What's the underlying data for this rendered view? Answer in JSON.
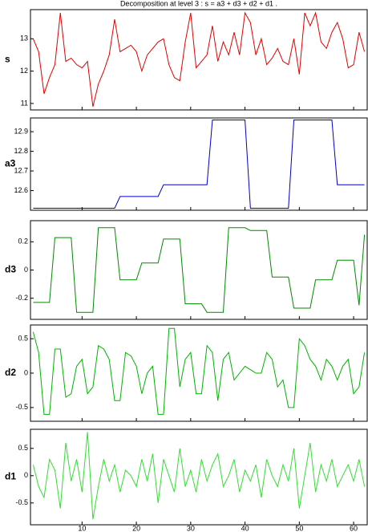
{
  "chart_data": {
    "type": "line",
    "title": "Decomposition at level 3 : s = a3 + d3 + d2 + d1 .",
    "x": [
      1,
      2,
      3,
      4,
      5,
      6,
      7,
      8,
      9,
      10,
      11,
      12,
      13,
      14,
      15,
      16,
      17,
      18,
      19,
      20,
      21,
      22,
      23,
      24,
      25,
      26,
      27,
      28,
      29,
      30,
      31,
      32,
      33,
      34,
      35,
      36,
      37,
      38,
      39,
      40,
      41,
      42,
      43,
      44,
      45,
      46,
      47,
      48,
      49,
      50,
      51,
      52,
      53,
      54,
      55,
      56,
      57,
      58,
      59,
      60,
      61,
      62
    ],
    "xlim": [
      0.5,
      62.5
    ],
    "xticks": [
      10,
      20,
      30,
      40,
      50,
      60
    ],
    "panels": [
      {
        "ylabel": "s",
        "color": "#e00000",
        "ylim": [
          10.8,
          13.9
        ],
        "yticks": [
          11,
          12,
          13
        ],
        "values": [
          13.0,
          12.6,
          11.3,
          11.8,
          12.2,
          13.8,
          12.3,
          12.4,
          12.2,
          12.1,
          12.3,
          10.9,
          11.6,
          12.0,
          12.5,
          13.6,
          12.6,
          12.7,
          12.8,
          12.6,
          12.0,
          12.5,
          12.7,
          12.9,
          13.0,
          12.2,
          11.8,
          11.7,
          12.9,
          13.8,
          12.1,
          12.3,
          12.5,
          13.4,
          12.3,
          12.9,
          12.5,
          13.2,
          12.5,
          13.8,
          13.5,
          12.5,
          13.0,
          12.2,
          12.4,
          12.7,
          12.3,
          12.2,
          13.0,
          11.9,
          13.8,
          13.4,
          13.8,
          12.9,
          12.7,
          13.2,
          13.5,
          13.0,
          12.1,
          12.2,
          13.2,
          12.6
        ]
      },
      {
        "ylabel": "a3",
        "color": "#0000c8",
        "ylim": [
          12.5,
          12.97
        ],
        "yticks": [
          12.6,
          12.7,
          12.8,
          12.9
        ],
        "values": [
          12.51,
          12.51,
          12.51,
          12.51,
          12.51,
          12.51,
          12.51,
          12.51,
          12.51,
          12.51,
          12.51,
          12.51,
          12.51,
          12.51,
          12.51,
          12.51,
          12.57,
          12.57,
          12.57,
          12.57,
          12.57,
          12.57,
          12.57,
          12.57,
          12.63,
          12.63,
          12.63,
          12.63,
          12.63,
          12.63,
          12.63,
          12.63,
          12.63,
          12.96,
          12.96,
          12.96,
          12.96,
          12.96,
          12.96,
          12.96,
          12.51,
          12.51,
          12.51,
          12.51,
          12.51,
          12.51,
          12.51,
          12.51,
          12.96,
          12.96,
          12.96,
          12.96,
          12.96,
          12.96,
          12.96,
          12.96,
          12.63,
          12.63,
          12.63,
          12.63,
          12.63,
          12.63
        ]
      },
      {
        "ylabel": "d3",
        "color": "#008a00",
        "ylim": [
          -0.35,
          0.35
        ],
        "yticks": [
          -0.2,
          0,
          0.2
        ],
        "values": [
          -0.23,
          -0.23,
          -0.23,
          -0.23,
          0.23,
          0.23,
          0.23,
          0.23,
          -0.3,
          -0.3,
          -0.3,
          -0.3,
          0.3,
          0.3,
          0.3,
          0.3,
          -0.07,
          -0.07,
          -0.07,
          -0.07,
          0.05,
          0.05,
          0.05,
          0.05,
          0.22,
          0.22,
          0.22,
          0.22,
          -0.24,
          -0.24,
          -0.24,
          -0.24,
          -0.3,
          -0.3,
          -0.3,
          -0.3,
          0.3,
          0.3,
          0.3,
          0.3,
          0.28,
          0.28,
          0.28,
          0.28,
          -0.05,
          -0.05,
          -0.05,
          -0.05,
          -0.27,
          -0.27,
          -0.27,
          -0.27,
          -0.07,
          -0.07,
          -0.07,
          -0.07,
          0.07,
          0.07,
          0.07,
          0.07,
          -0.25,
          0.25
        ]
      },
      {
        "ylabel": "d2",
        "color": "#00b400",
        "ylim": [
          -0.7,
          0.7
        ],
        "yticks": [
          -0.5,
          0,
          0.5
        ],
        "values": [
          0.6,
          0.3,
          -0.6,
          -0.6,
          0.35,
          0.35,
          -0.35,
          -0.3,
          0.1,
          0.2,
          -0.3,
          -0.2,
          0.4,
          0.35,
          0.2,
          -0.4,
          -0.4,
          0.3,
          0.25,
          0.1,
          -0.3,
          0.0,
          0.1,
          -0.6,
          -0.6,
          0.65,
          0.65,
          -0.2,
          0.2,
          0.3,
          -0.3,
          -0.3,
          0.4,
          0.3,
          -0.4,
          0.2,
          0.3,
          -0.1,
          0.0,
          0.1,
          0.05,
          0.0,
          0.0,
          0.3,
          0.2,
          -0.2,
          -0.1,
          -0.5,
          -0.5,
          0.5,
          0.4,
          0.2,
          0.1,
          -0.1,
          0.2,
          0.1,
          -0.1,
          0.1,
          0.2,
          -0.3,
          -0.2,
          0.3
        ]
      },
      {
        "ylabel": "d1",
        "color": "#33dd33",
        "ylim": [
          -0.9,
          0.85
        ],
        "yticks": [
          -0.5,
          0,
          0.5
        ],
        "values": [
          0.2,
          -0.2,
          -0.4,
          0.3,
          0.1,
          -0.6,
          0.6,
          -0.1,
          0.3,
          -0.3,
          0.8,
          -0.8,
          -0.2,
          0.3,
          -0.1,
          0.2,
          -0.3,
          0.1,
          0.0,
          -0.2,
          0.3,
          -0.1,
          0.4,
          -0.5,
          0.3,
          0.0,
          -0.3,
          0.5,
          -0.2,
          0.1,
          -0.3,
          0.3,
          -0.1,
          0.2,
          0.4,
          -0.2,
          0.0,
          0.3,
          -0.3,
          0.1,
          -0.1,
          0.2,
          -0.4,
          0.3,
          0.0,
          -0.2,
          0.2,
          -0.1,
          0.5,
          -0.6,
          0.0,
          0.6,
          -0.3,
          0.2,
          -0.1,
          0.3,
          -0.2,
          0.0,
          0.2,
          -0.1,
          0.3,
          -0.2
        ]
      }
    ]
  }
}
